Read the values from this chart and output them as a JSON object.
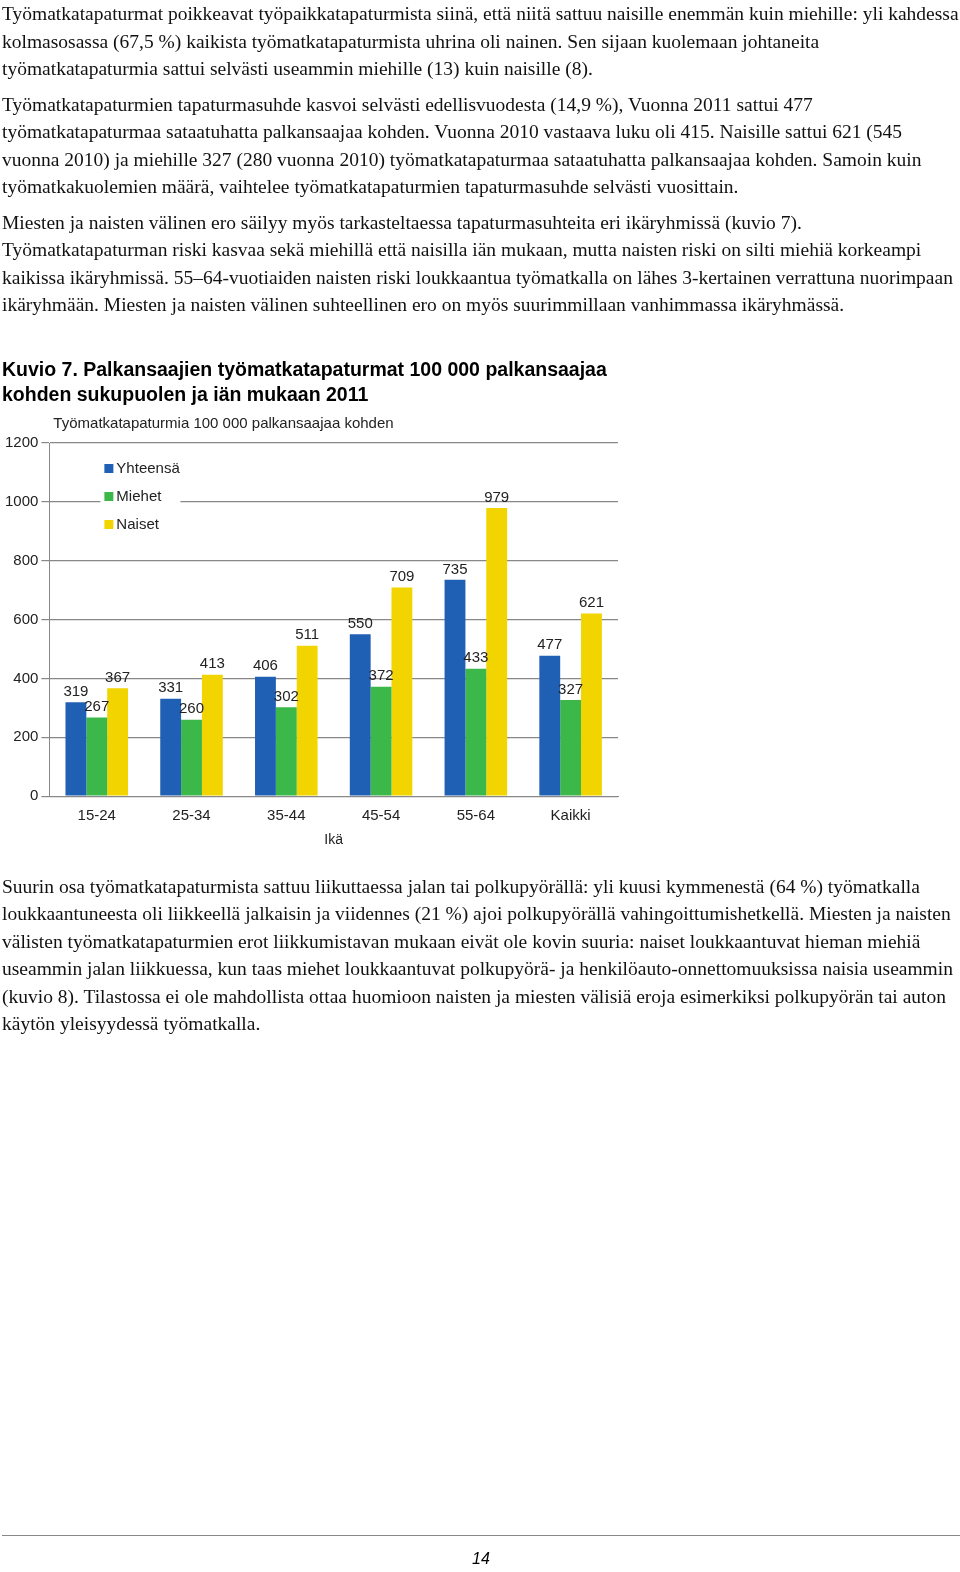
{
  "chart_data": {
    "type": "bar",
    "title": "Kuvio 7. Palkansaajien työmatkatapaturmat 100 000 palkansaajaa kohden sukupuolen ja iän mukaan 2011",
    "ylabel": "Työmatkatapaturmia 100 000 palkansaajaa kohden",
    "xlabel": "Ikä",
    "categories": [
      "15-24",
      "25-34",
      "35-44",
      "45-54",
      "55-64",
      "Kaikki"
    ],
    "series": [
      {
        "name": "Yhteensä",
        "color": "#1f5fb4",
        "values": [
          319,
          331,
          406,
          550,
          735,
          477
        ]
      },
      {
        "name": "Miehet",
        "color": "#3cb84a",
        "values": [
          267,
          260,
          302,
          372,
          433,
          327
        ]
      },
      {
        "name": "Naiset",
        "color": "#f2d500",
        "values": [
          367,
          413,
          511,
          709,
          979,
          621
        ]
      }
    ],
    "ylim": [
      0,
      1200
    ],
    "yticks": [
      0,
      200,
      400,
      600,
      800,
      1000,
      1200
    ],
    "grid": "y",
    "legend": "top left",
    "data_labels": true,
    "annotations": [
      "Työmatkatapaturmat poikkeavat työpaikkatapaturmista siinä, että niitä sattuu naisille enemmän kuin miehille: yli kahdessa kolmasosassa (67,5 %) kaikista työmatkatapaturmista uhrina oli nainen. Sen sijaan kuolemaan johtaneita työmatkatapaturmia sattui selvästi useammin miehille (13) kuin naisille (8).",
      "Työmatkatapaturmien tapaturmasuhde kasvoi selvästi edellisvuodesta (14,9 %), Vuonna 2011 sattui 477 työmatkatapaturmaa sataatuhatta palkansaajaa kohden. Vuonna 2010 vastaava luku oli 415. Naisille sattui 621 (545 vuonna 2010) ja miehille 327 (280 vuonna 2010) työmatkatapaturmaa sataatuhatta palkansaajaa kohden. Samoin kuin työmatkakuolemien määrä, vaihtelee työmatkatapaturmien tapaturmasuhde selvästi vuosittain.",
      "Miesten ja naisten välinen ero säilyy myös tarkasteltaessa tapaturmasuhteita eri ikäryhmissä (kuvio 7). Työmatkatapaturman riski kasvaa sekä miehillä että naisilla iän mukaan, mutta naisten riski on silti miehiä korkeampi kaikissa ikäryhmissä. 55–64-vuotiaiden naisten riski loukkaantua työmatkalla on lähes 3-kertainen verrattuna nuorimpaan ikäryhmään. Miesten ja naisten välinen suhteellinen ero on myös suurimmillaan vanhimmassa ikäryhmässä.",
      "Suurin osa työmatkatapaturmista sattuu liikuttaessa jalan tai polkupyörällä: yli kuusi kymmenestä (64 %) työmatkalla loukkaantuneesta oli liikkeellä jalkaisin ja viidennes (21 %) ajoi polkupyörällä vahingoittumishetkellä. Miesten ja naisten välisten työmatkatapaturmien erot liikkumistavan mukaan eivät ole kovin suuria: naiset loukkaantuvat hieman miehiä useammin jalan liikkuessa, kun taas miehet loukkaantuvat polkupyörä- ja henkilöauto-onnettomuuksissa naisia useammin (kuvio 8). Tilastossa ei ole mahdollista ottaa huomioon naisten ja miesten välisiä eroja esimerkiksi polkupyörän tai auton käytön yleisyydessä työmatkalla.",
      "14"
    ]
  }
}
